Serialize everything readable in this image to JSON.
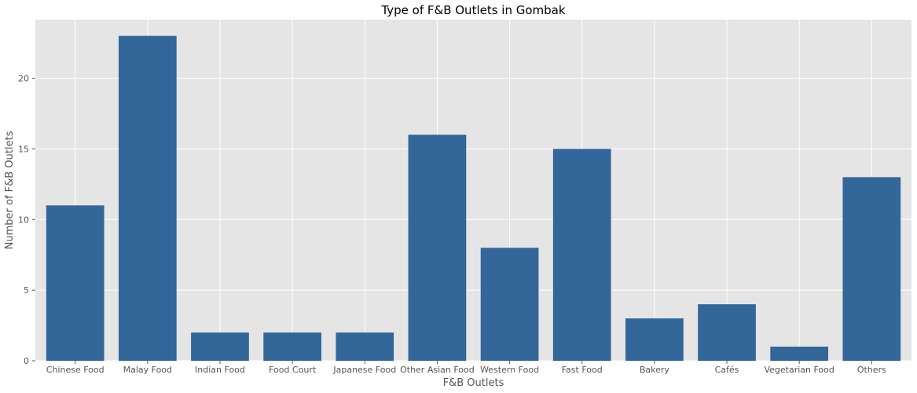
{
  "chart_data": {
    "type": "bar",
    "title": "Type of F&B Outlets in Gombak",
    "xlabel": "F&B Outlets",
    "ylabel": "Number of F&B Outlets",
    "categories": [
      "Chinese Food",
      "Malay Food",
      "Indian Food",
      "Food Court",
      "Japanese Food",
      "Other Asian Food",
      "Western Food",
      "Fast Food",
      "Bakery",
      "Cafés",
      "Vegetarian Food",
      "Others"
    ],
    "values": [
      11,
      23,
      2,
      2,
      2,
      16,
      8,
      15,
      3,
      4,
      1,
      13
    ],
    "yticks": [
      0,
      5,
      10,
      15,
      20
    ],
    "ylim": [
      0,
      24.15
    ],
    "grid": true,
    "colors": {
      "bar": "#336699",
      "background": "#e5e5e5",
      "grid": "#ffffff"
    }
  }
}
